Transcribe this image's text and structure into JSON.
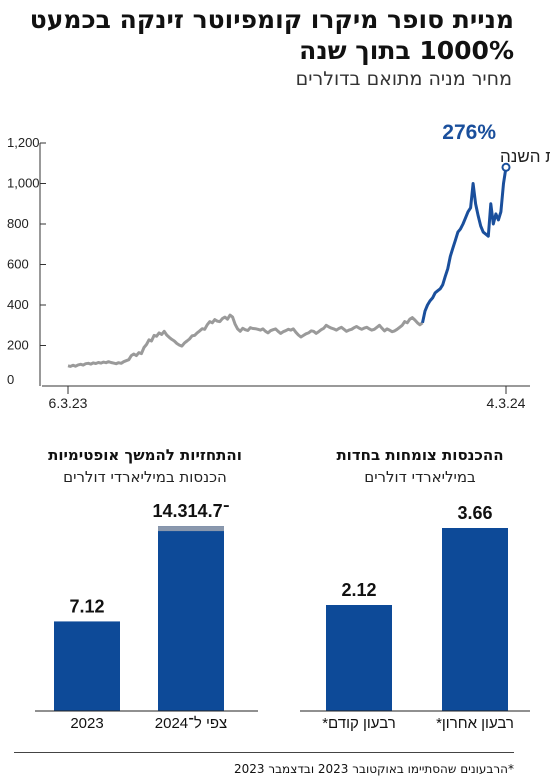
{
  "header": {
    "title": "מניית סופר מיקרו קומפיוטר זינקה בכמעט 1000% בתוך שנה",
    "subtitle": "מחיר מניה מתואם בדולרים"
  },
  "colors": {
    "early": "#9a9a9a",
    "recent": "#1a4f9c",
    "bar": "#0d4a98",
    "bar_top": "#8a98ad",
    "axis": "#333333"
  },
  "chart_data": [
    {
      "type": "line",
      "y_ticks": [
        "1,200",
        "1,000",
        "800",
        "600",
        "400",
        "200",
        "0"
      ],
      "ylim": [
        0,
        1200
      ],
      "x_start_label": "6.3.23",
      "x_end_label": "4.3.24",
      "annotation": {
        "value": "276%",
        "label": "מתחילת השנה"
      },
      "grid": false,
      "series": [
        {
          "values": [
            100,
            97,
            102,
            98,
            104,
            107,
            103,
            110,
            112,
            108,
            114,
            111,
            116,
            113,
            118,
            115,
            120,
            116,
            113,
            110,
            115,
            112,
            120,
            125,
            130,
            150,
            158,
            150,
            165,
            160,
            190,
            205,
            228,
            222,
            250,
            246,
            262,
            255,
            270,
            252,
            240,
            230,
            222,
            210,
            202,
            197,
            213,
            222,
            232,
            248,
            250,
            262,
            272,
            283,
            280,
            302,
            318,
            312,
            328,
            320,
            318,
            333,
            340,
            330,
            350,
            340,
            305,
            282,
            270,
            285,
            278,
            274,
            288,
            284,
            283,
            280,
            276,
            282,
            270,
            262,
            273,
            278,
            282,
            270,
            260,
            268,
            273,
            280,
            276,
            282,
            265,
            252,
            242,
            250,
            258,
            262,
            272,
            270,
            260,
            268,
            278,
            285,
            300,
            292,
            286,
            282,
            276,
            284,
            290,
            280,
            270,
            276,
            280,
            288,
            294,
            286,
            280,
            286,
            290,
            282,
            276,
            280,
            290,
            300,
            286,
            272,
            282,
            276,
            268,
            272,
            280,
            290,
            300,
            318,
            312,
            330,
            338,
            326,
            312,
            302,
            312
          ]
        },
        {
          "values": [
            312,
            370,
            400,
            420,
            435,
            460,
            470,
            480,
            500,
            540,
            580,
            640,
            680,
            720,
            760,
            775,
            800,
            830,
            860,
            880,
            1000,
            900,
            840,
            790,
            760,
            750,
            740,
            900,
            800,
            850,
            820,
            860,
            1000,
            1080
          ]
        }
      ]
    },
    {
      "type": "bar",
      "title": "ההכנסות צומחות בחדות",
      "subtitle": "במיליארדי דולרים",
      "categories": [
        "רבעון קודם*",
        "רבעון אחרון*"
      ],
      "values": [
        2.12,
        3.66
      ],
      "value_labels": [
        "2.12",
        "3.66"
      ],
      "ylim": [
        0,
        3.9
      ]
    },
    {
      "type": "bar",
      "title": "והתחזיות להמשך אופטימיות",
      "subtitle": "הכנסות במיליארדי דולרים",
      "categories": [
        "2023",
        "צפי ל־2024"
      ],
      "values": [
        7.12,
        14.7
      ],
      "range_low": [
        null,
        14.3
      ],
      "value_labels": [
        "7.12",
        "14.3־14.7"
      ],
      "ylim": [
        0,
        15.5
      ]
    }
  ],
  "footnote": "*הרבעונים שהסתיימו באוקטובר 2023 ובדצמבר 2023"
}
